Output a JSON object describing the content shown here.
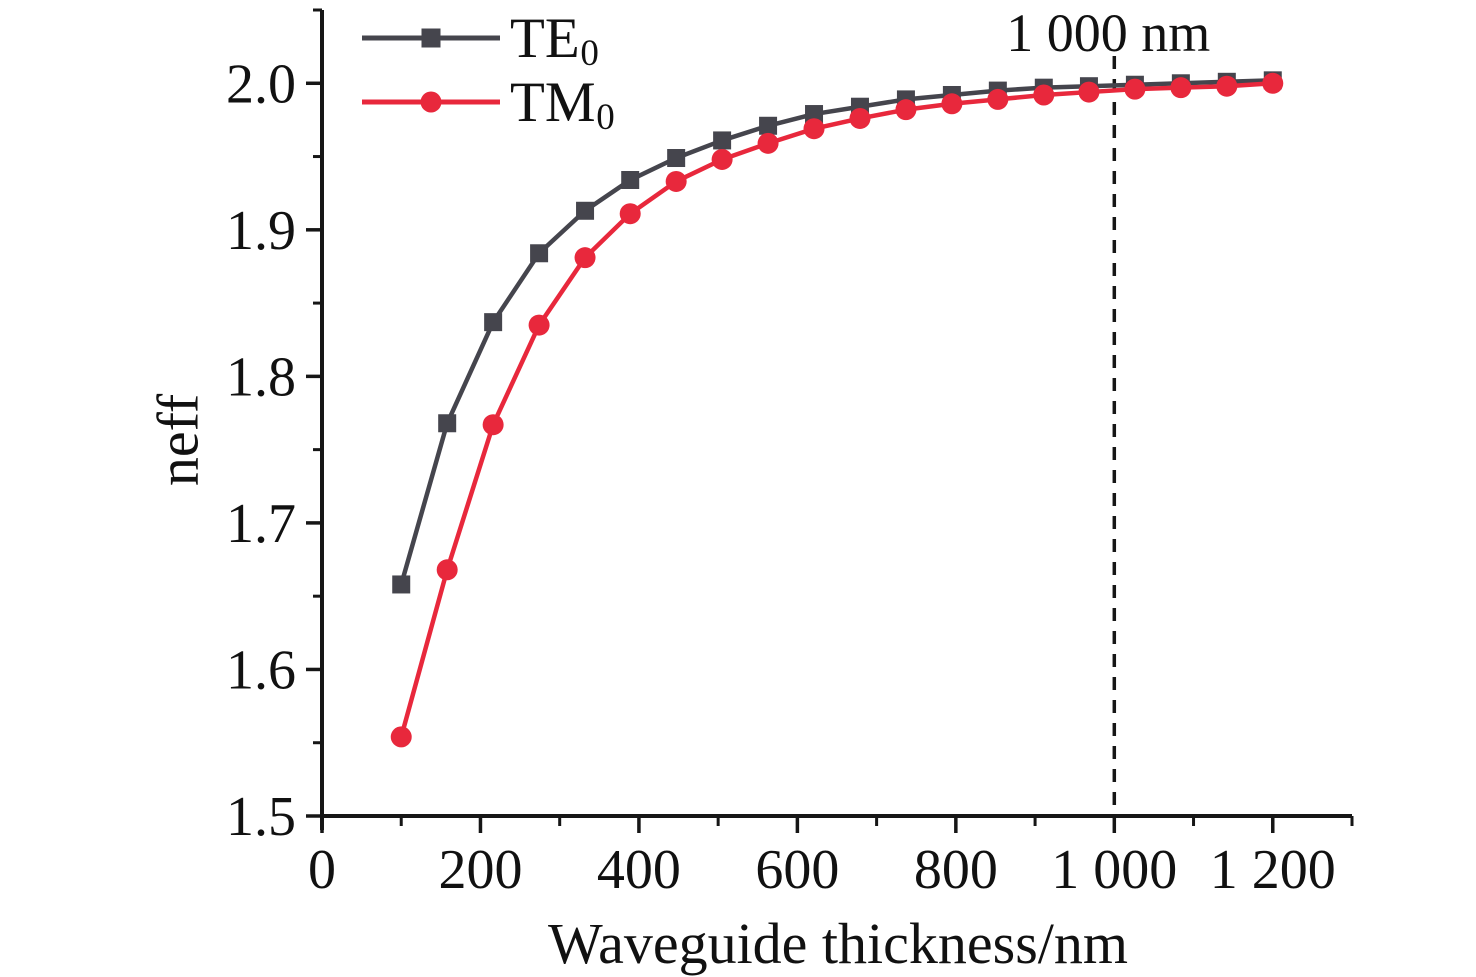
{
  "figure": {
    "background": "#ffffff",
    "axis_color": "#161616",
    "text_color": "#111111"
  },
  "chart_data": {
    "type": "line",
    "title": "",
    "xlabel": "Waveguide thickness/nm",
    "ylabel": "neff",
    "xlim": [
      0,
      1300
    ],
    "ylim": [
      1.5,
      2.05
    ],
    "grid": false,
    "legend_position": "top-left",
    "x_major_ticks": [
      0,
      200,
      400,
      600,
      800,
      1000,
      1200
    ],
    "x_major_labels": [
      "0",
      "200",
      "400",
      "600",
      "800",
      "1 000",
      "1 200"
    ],
    "x_minor_ticks": [
      100,
      300,
      500,
      700,
      900,
      1100,
      1300
    ],
    "y_major_ticks": [
      1.5,
      1.6,
      1.7,
      1.8,
      1.9,
      2.0
    ],
    "y_major_labels": [
      "1.5",
      "1.6",
      "1.7",
      "1.8",
      "1.9",
      "2.0"
    ],
    "y_minor_ticks": [
      1.55,
      1.65,
      1.75,
      1.85,
      1.95,
      2.05
    ],
    "x": [
      100,
      158,
      216,
      274,
      332,
      389,
      447,
      505,
      563,
      621,
      679,
      737,
      795,
      853,
      911,
      968,
      1026,
      1084,
      1142,
      1200
    ],
    "series": [
      {
        "name": "TE0",
        "label_main": "TE",
        "label_sub": "0",
        "color": "#45454d",
        "marker": "square",
        "values": [
          1.658,
          1.768,
          1.837,
          1.884,
          1.913,
          1.934,
          1.949,
          1.961,
          1.971,
          1.979,
          1.984,
          1.989,
          1.992,
          1.995,
          1.997,
          1.998,
          1.999,
          2.0,
          2.001,
          2.002
        ]
      },
      {
        "name": "TM0",
        "label_main": "TM",
        "label_sub": "0",
        "color": "#e8283c",
        "marker": "circle",
        "values": [
          1.554,
          1.668,
          1.767,
          1.835,
          1.881,
          1.911,
          1.933,
          1.948,
          1.959,
          1.969,
          1.976,
          1.982,
          1.986,
          1.989,
          1.992,
          1.994,
          1.996,
          1.997,
          1.998,
          2.0
        ]
      }
    ],
    "annotation": {
      "text": "1 000 nm",
      "x": 1000
    },
    "reference_line": {
      "x": 1000,
      "style": "dashed",
      "color": "#161616"
    }
  }
}
